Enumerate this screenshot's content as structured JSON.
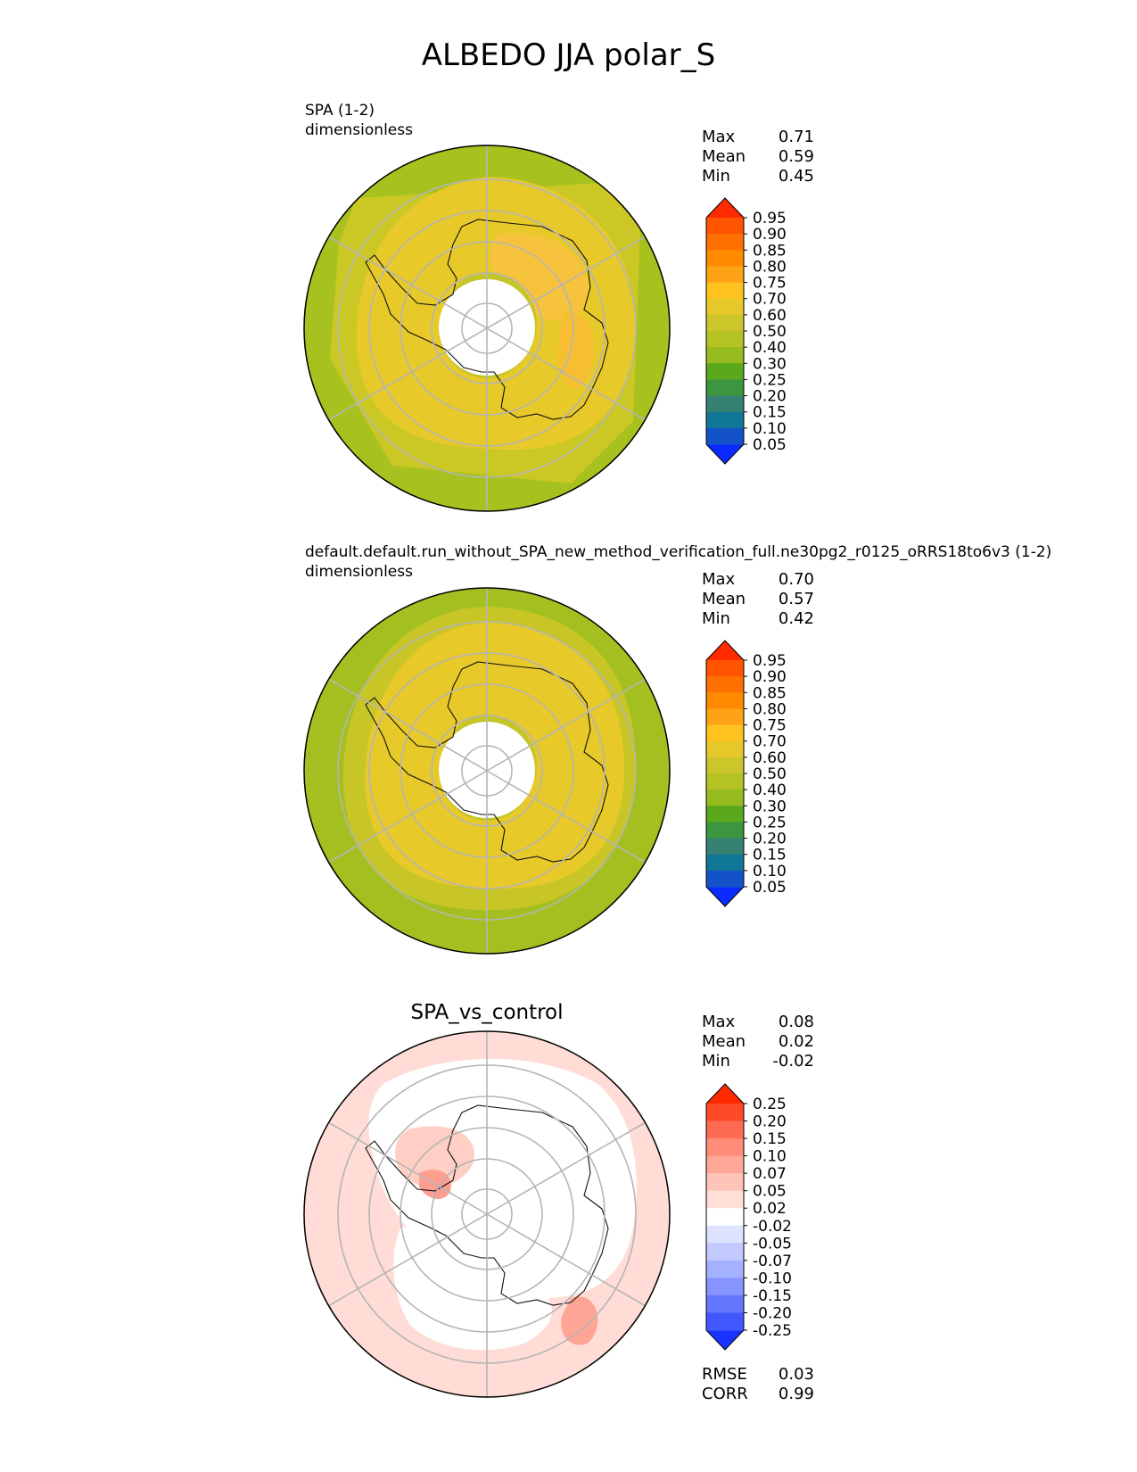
{
  "figure_title": "ALBEDO JJA polar_S",
  "panels": [
    {
      "label": "SPA (1-2)",
      "units": "dimensionless",
      "stats": [
        {
          "name": "Max",
          "value": "0.71"
        },
        {
          "name": "Mean",
          "value": "0.59"
        },
        {
          "name": "Min",
          "value": "0.45"
        }
      ]
    },
    {
      "label": "default.default.run_without_SPA_new_method_verification_full.ne30pg2_r0125_oRRS18to6v3 (1-2)",
      "units": "dimensionless",
      "stats": [
        {
          "name": "Max",
          "value": "0.70"
        },
        {
          "name": "Mean",
          "value": "0.57"
        },
        {
          "name": "Min",
          "value": "0.42"
        }
      ]
    },
    {
      "title": "SPA_vs_control",
      "stats": [
        {
          "name": "Max",
          "value": "0.08"
        },
        {
          "name": "Mean",
          "value": "0.02"
        },
        {
          "name": "Min",
          "value": "-0.02"
        }
      ],
      "metrics": [
        {
          "name": "RMSE",
          "value": "0.03"
        },
        {
          "name": "CORR",
          "value": "0.99"
        }
      ]
    }
  ],
  "chart_data": [
    {
      "type": "heatmap",
      "projection": "south polar stereographic",
      "label": "SPA (1-2)",
      "units": "dimensionless",
      "colorbar_ticks": [
        "0.95",
        "0.90",
        "0.85",
        "0.80",
        "0.75",
        "0.70",
        "0.60",
        "0.50",
        "0.40",
        "0.30",
        "0.25",
        "0.20",
        "0.15",
        "0.10",
        "0.05"
      ],
      "colorbar_colors": [
        "#ff2a00",
        "#ff5500",
        "#ff7000",
        "#ff8a00",
        "#ffa316",
        "#ffc21f",
        "#e6c82a",
        "#cdc62a",
        "#b4c224",
        "#96bb1e",
        "#5aa81c",
        "#3c9640",
        "#358272",
        "#117796",
        "#1452c8",
        "#0a2aff"
      ],
      "max": 0.71,
      "mean": 0.59,
      "min": 0.45
    },
    {
      "type": "heatmap",
      "projection": "south polar stereographic",
      "label": "default.default.run_without_SPA_new_method_verification_full.ne30pg2_r0125_oRRS18to6v3 (1-2)",
      "units": "dimensionless",
      "colorbar_ticks": [
        "0.95",
        "0.90",
        "0.85",
        "0.80",
        "0.75",
        "0.70",
        "0.60",
        "0.50",
        "0.40",
        "0.30",
        "0.25",
        "0.20",
        "0.15",
        "0.10",
        "0.05"
      ],
      "colorbar_colors": [
        "#ff2a00",
        "#ff5500",
        "#ff7000",
        "#ff8a00",
        "#ffa316",
        "#ffc21f",
        "#e6c82a",
        "#cdc62a",
        "#b4c224",
        "#96bb1e",
        "#5aa81c",
        "#3c9640",
        "#358272",
        "#117796",
        "#1452c8",
        "#0a2aff"
      ],
      "max": 0.7,
      "mean": 0.57,
      "min": 0.42
    },
    {
      "type": "heatmap",
      "projection": "south polar stereographic",
      "title": "SPA_vs_control",
      "colorbar_ticks": [
        "0.25",
        "0.20",
        "0.15",
        "0.10",
        "0.07",
        "0.05",
        "0.02",
        "-0.02",
        "-0.05",
        "-0.07",
        "-0.10",
        "-0.15",
        "-0.20",
        "-0.25"
      ],
      "colorbar_colors": [
        "#ff2a00",
        "#ff4a2a",
        "#ff6a52",
        "#ff8c78",
        "#ffa898",
        "#ffc4b8",
        "#ffdfd8",
        "#ffffff",
        "#dde2ff",
        "#c2caff",
        "#a4b1ff",
        "#8594ff",
        "#6577ff",
        "#4258ff",
        "#1a34ff"
      ],
      "max": 0.08,
      "mean": 0.02,
      "min": -0.02,
      "rmse": 0.03,
      "corr": 0.99
    }
  ]
}
